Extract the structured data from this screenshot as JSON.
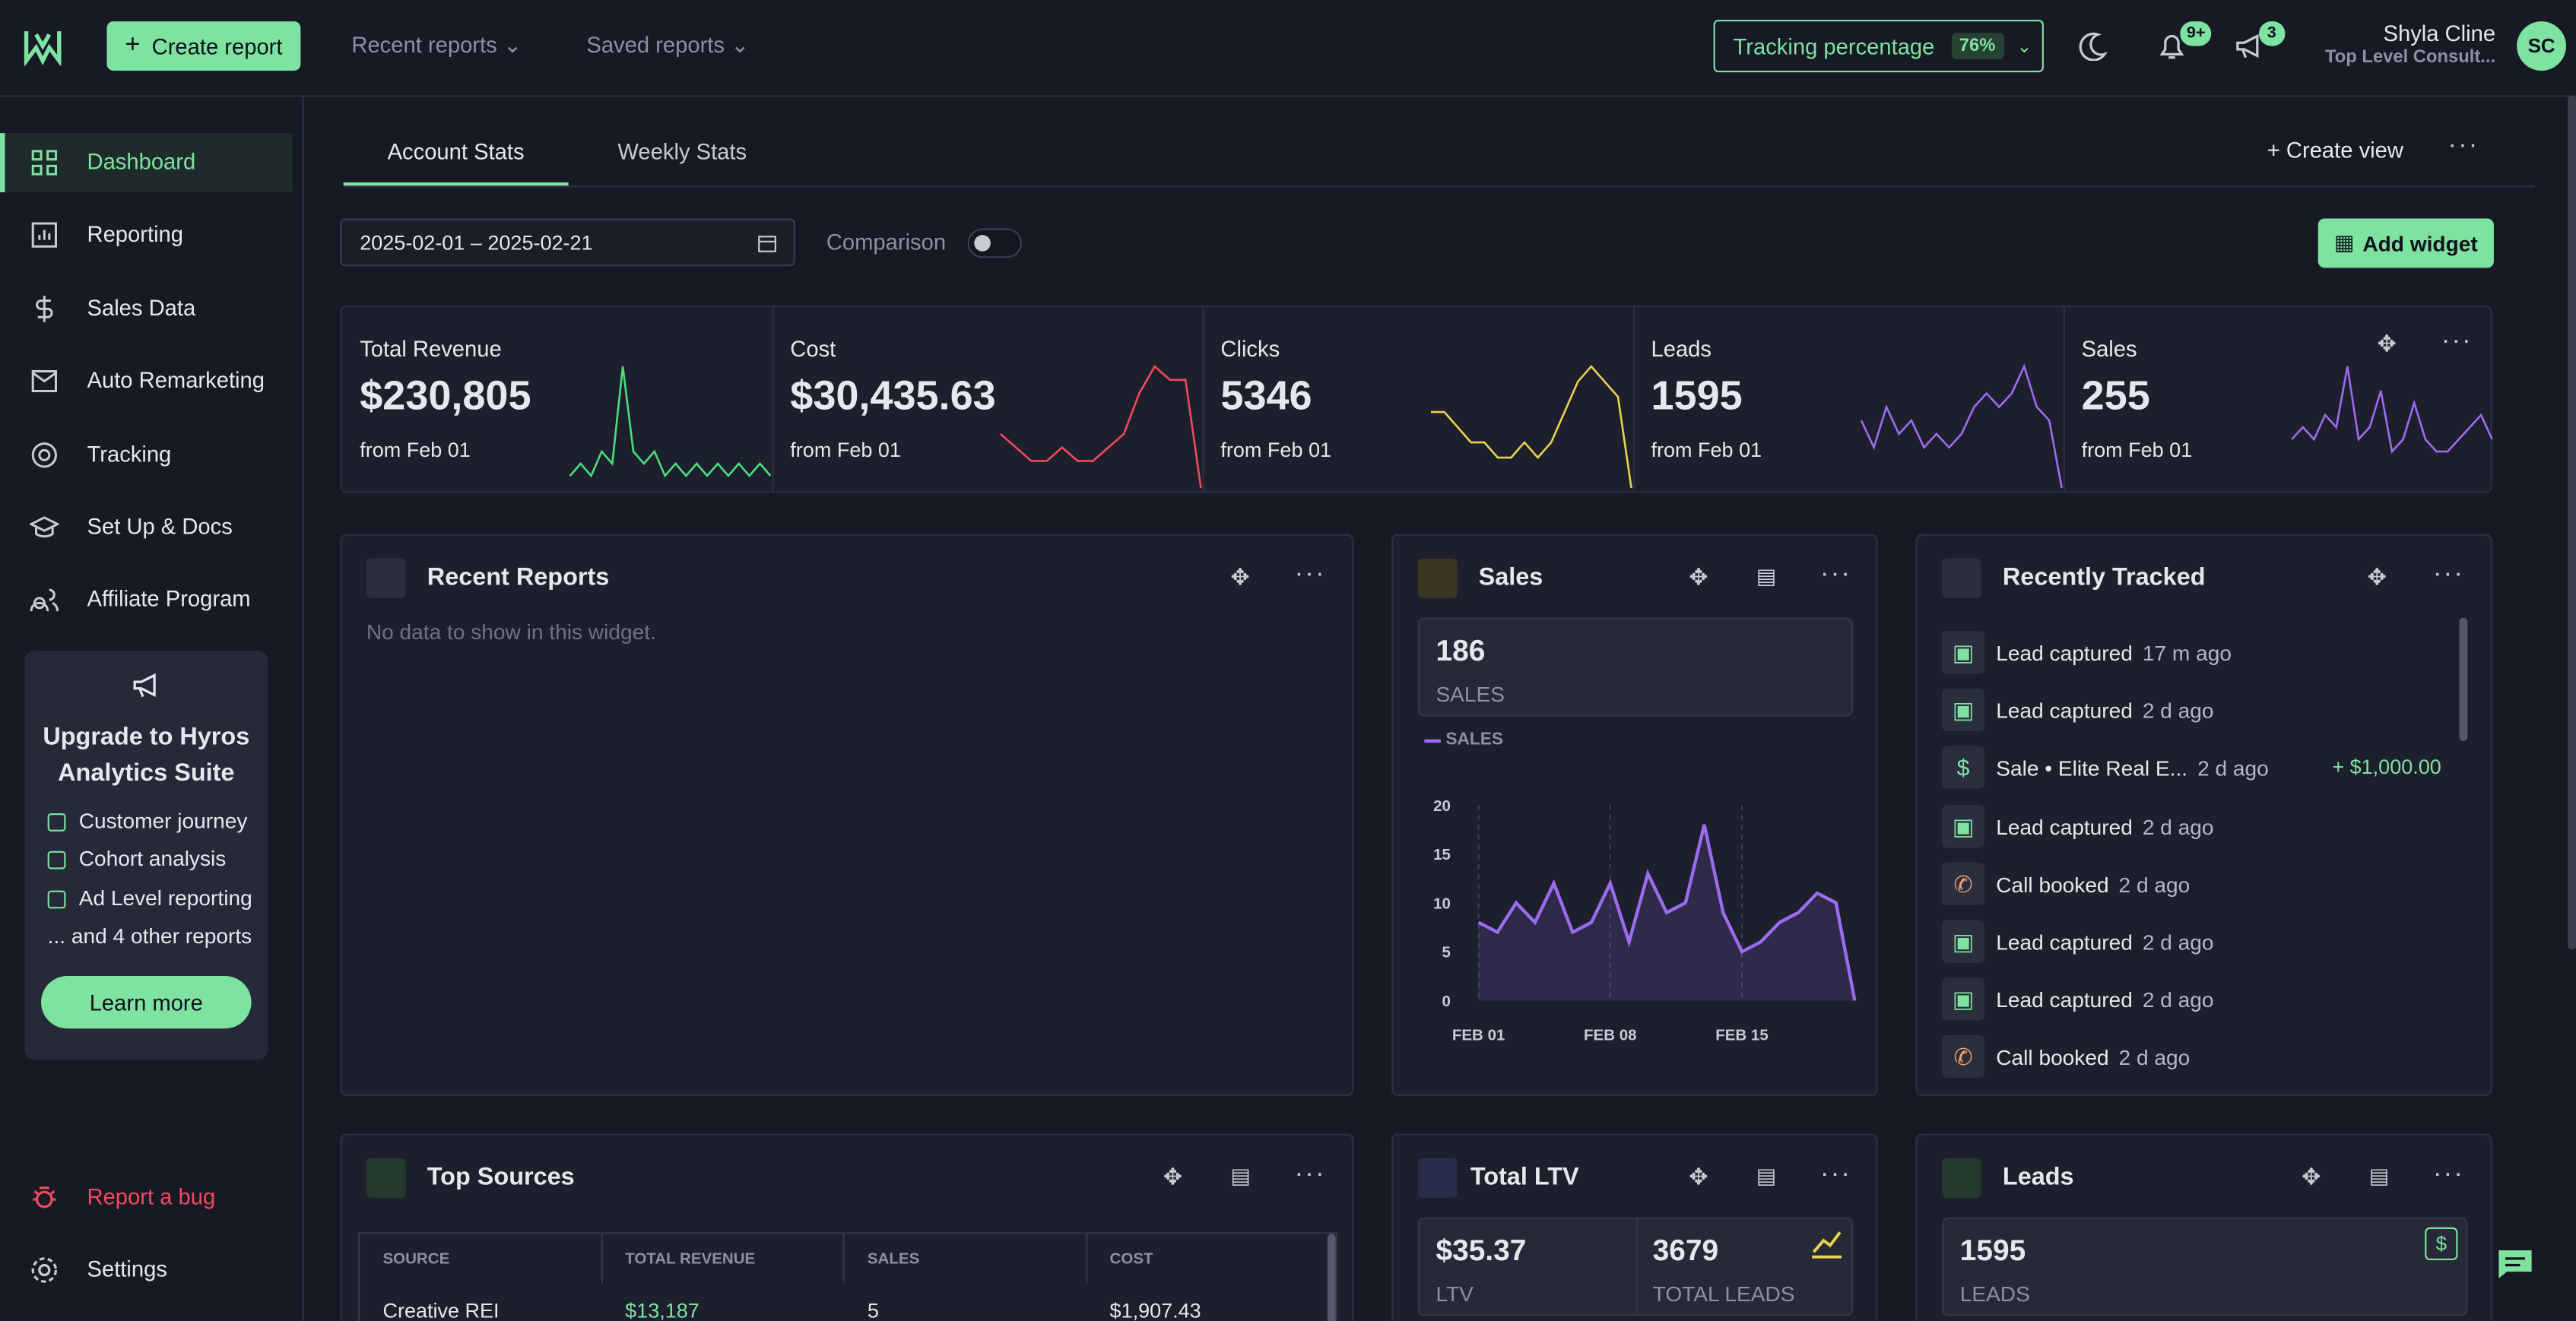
{
  "topbar": {
    "create_report": "Create report",
    "recent_reports": "Recent reports",
    "saved_reports": "Saved reports",
    "tracking_label": "Tracking percentage",
    "tracking_value": "76%",
    "notifications": "9+",
    "announcements": "3",
    "user_name": "Shyla Cline",
    "user_company": "Top Level Consult...",
    "avatar": "SC"
  },
  "sidebar": {
    "items": [
      "Dashboard",
      "Reporting",
      "Sales Data",
      "Auto Remarketing",
      "Tracking",
      "Set Up & Docs",
      "Affiliate Program"
    ],
    "upgrade": {
      "title": "Upgrade to Hyros Analytics Suite",
      "features": [
        "Customer journey",
        "Cohort analysis",
        "Ad Level reporting",
        "... and 4 other reports"
      ],
      "button": "Learn more"
    },
    "report_bug": "Report a bug",
    "settings": "Settings"
  },
  "tabs": [
    "Account Stats",
    "Weekly Stats"
  ],
  "create_view": "Create view",
  "date_range": "2025-02-01 – 2025-02-21",
  "comparison": "Comparison",
  "add_widget": "Add widget",
  "stats": [
    {
      "label": "Total Revenue",
      "value": "$230,805",
      "sub": "from Feb 01",
      "color": "#4ade80",
      "spark": [
        1,
        2,
        1,
        3,
        2,
        10,
        3,
        2,
        3,
        1,
        2,
        1,
        2,
        1,
        2,
        1,
        2,
        1,
        2,
        1
      ]
    },
    {
      "label": "Cost",
      "value": "$30,435.63",
      "sub": "from Feb 01",
      "color": "#f04a5e",
      "spark": [
        4,
        3,
        2,
        2,
        3,
        2,
        2,
        3,
        4,
        7,
        9,
        8,
        8,
        0
      ]
    },
    {
      "label": "Clicks",
      "value": "5346",
      "sub": "from Feb 01",
      "color": "#e8d44d",
      "spark": [
        5,
        5,
        4,
        3,
        3,
        2,
        2,
        3,
        2,
        3,
        5,
        7,
        8,
        7,
        6,
        0
      ]
    },
    {
      "label": "Leads",
      "value": "1595",
      "sub": "from Feb 01",
      "color": "#9b6cf0",
      "spark": [
        5,
        3,
        6,
        4,
        5,
        3,
        4,
        3,
        4,
        6,
        7,
        6,
        7,
        9,
        6,
        5,
        0
      ]
    },
    {
      "label": "Sales",
      "value": "255",
      "sub": "from Feb 01",
      "color": "#9b6cf0",
      "spark": [
        4,
        5,
        4,
        6,
        5,
        10,
        4,
        5,
        8,
        3,
        4,
        7,
        4,
        3,
        3,
        4,
        5,
        6,
        4
      ]
    }
  ],
  "recent_reports": {
    "title": "Recent Reports",
    "empty": "No data to show in this widget."
  },
  "sales": {
    "title": "Sales",
    "total": "186",
    "total_label": "SALES",
    "chart_data": {
      "type": "area",
      "legend": "SALES",
      "color": "#9b6cf0",
      "categories": [
        "FEB 01",
        null,
        null,
        null,
        null,
        null,
        null,
        "FEB 08",
        null,
        null,
        null,
        null,
        null,
        null,
        "FEB 15",
        null,
        null,
        null,
        null,
        null,
        null
      ],
      "values": [
        8,
        7,
        10,
        8,
        12,
        7,
        8,
        12,
        6,
        13,
        9,
        10,
        18,
        9,
        5,
        6,
        8,
        9,
        11,
        10,
        0
      ],
      "ylim": [
        0,
        20
      ],
      "yticks": [
        0,
        5,
        10,
        15,
        20
      ]
    }
  },
  "recently_tracked": {
    "title": "Recently Tracked",
    "items": [
      {
        "event": "Lead captured",
        "time": "17 m ago"
      },
      {
        "event": "Lead captured",
        "time": "2 d ago"
      },
      {
        "event": "Sale • Elite Real E...",
        "time": "2 d ago",
        "amount": "+ $1,000.00"
      },
      {
        "event": "Lead captured",
        "time": "2 d ago"
      },
      {
        "event": "Call booked",
        "time": "2 d ago"
      },
      {
        "event": "Lead captured",
        "time": "2 d ago"
      },
      {
        "event": "Lead captured",
        "time": "2 d ago"
      },
      {
        "event": "Call booked",
        "time": "2 d ago"
      }
    ]
  },
  "top_sources": {
    "title": "Top Sources",
    "columns": [
      "SOURCE",
      "TOTAL REVENUE",
      "SALES",
      "COST"
    ],
    "rows": [
      [
        "Creative REI",
        "$13,187",
        "5",
        "$1,907.43"
      ]
    ]
  },
  "total_ltv": {
    "title": "Total LTV",
    "ltv": "$35.37",
    "ltv_label": "LTV",
    "leads": "3679",
    "leads_label": "TOTAL LEADS"
  },
  "leads": {
    "title": "Leads",
    "value": "1595",
    "label": "LEADS"
  }
}
